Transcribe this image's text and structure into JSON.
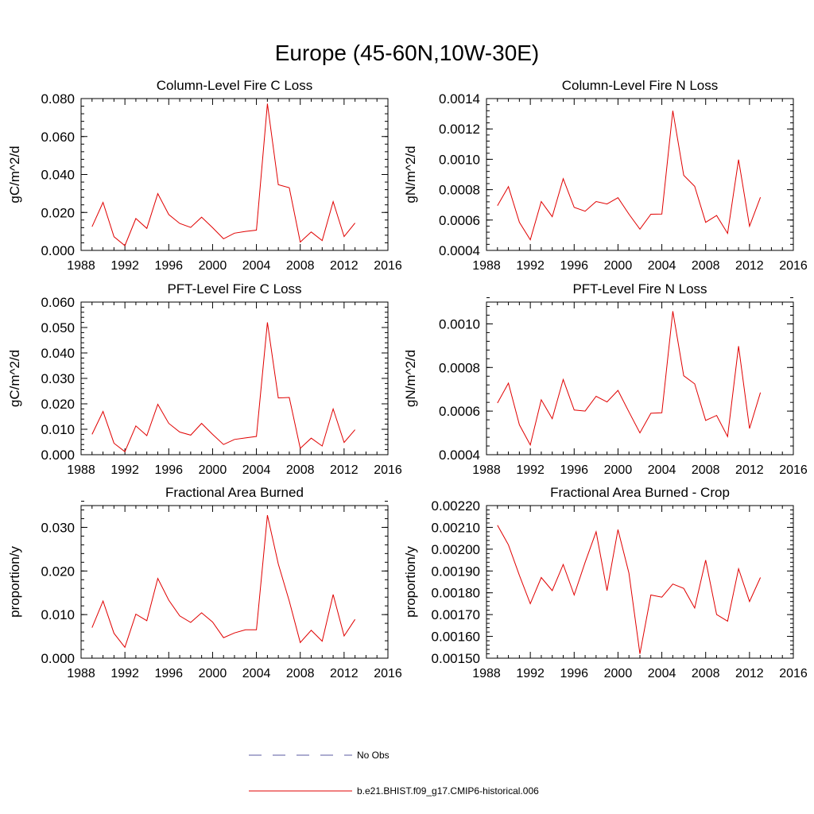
{
  "page_title": "Europe (45-60N,10W-30E)",
  "colors": {
    "model": "#e00000",
    "obs": "#5a5aa0",
    "axis": "#000000"
  },
  "legend": {
    "obs_label": "No Obs",
    "model_label": "b.e21.BHIST.f09_g17.CMIP6-historical.006"
  },
  "chart_data": [
    {
      "type": "line",
      "title": "Column-Level Fire C Loss",
      "ylabel": "gC/m^2/d",
      "xlim": [
        1988,
        2016
      ],
      "ylim": [
        0,
        0.08
      ],
      "xticks": [
        1988,
        1992,
        1996,
        2000,
        2004,
        2008,
        2012,
        2016
      ],
      "xtick_labels": [
        "1988",
        "1992",
        "1996",
        "2000",
        "2004",
        "2008",
        "2012",
        "2016"
      ],
      "yticks": [
        0,
        0.02,
        0.04,
        0.06,
        0.08
      ],
      "ytick_labels": [
        "0.000",
        "0.020",
        "0.040",
        "0.060",
        "0.080"
      ],
      "yminor": 0.004,
      "x": [
        1989,
        1990,
        1991,
        1992,
        1993,
        1994,
        1995,
        1996,
        1997,
        1998,
        1999,
        2000,
        2001,
        2002,
        2003,
        2004,
        2005,
        2006,
        2007,
        2008,
        2009,
        2010,
        2011,
        2012,
        2013
      ],
      "series": [
        {
          "values": [
            0.0125,
            0.0253,
            0.0072,
            0.0025,
            0.0168,
            0.0116,
            0.0299,
            0.0189,
            0.0142,
            0.0121,
            0.0175,
            0.012,
            0.0061,
            0.0091,
            0.01,
            0.0107,
            0.0773,
            0.0346,
            0.033,
            0.0044,
            0.0097,
            0.0052,
            0.0257,
            0.0073,
            0.0144
          ]
        }
      ]
    },
    {
      "type": "line",
      "title": "Column-Level Fire N Loss",
      "ylabel": "gN/m^2/d",
      "xlim": [
        1988,
        2016
      ],
      "ylim": [
        0.0004,
        0.0014
      ],
      "xticks": [
        1988,
        1992,
        1996,
        2000,
        2004,
        2008,
        2012,
        2016
      ],
      "xtick_labels": [
        "1988",
        "1992",
        "1996",
        "2000",
        "2004",
        "2008",
        "2012",
        "2016"
      ],
      "yticks": [
        0.0004,
        0.0006,
        0.0008,
        0.001,
        0.0012,
        0.0014
      ],
      "ytick_labels": [
        "0.0004",
        "0.0006",
        "0.0008",
        "0.0010",
        "0.0012",
        "0.0014"
      ],
      "yminor": 4e-05,
      "x": [
        1989,
        1990,
        1991,
        1992,
        1993,
        1994,
        1995,
        1996,
        1997,
        1998,
        1999,
        2000,
        2001,
        2002,
        2003,
        2004,
        2005,
        2006,
        2007,
        2008,
        2009,
        2010,
        2011,
        2012,
        2013
      ],
      "series": [
        {
          "values": [
            0.000695,
            0.00082,
            0.000585,
            0.00047,
            0.000722,
            0.000622,
            0.000872,
            0.000683,
            0.000658,
            0.000722,
            0.000706,
            0.000747,
            0.000639,
            0.00054,
            0.000638,
            0.00064,
            0.00132,
            0.000895,
            0.000822,
            0.000585,
            0.00063,
            0.000512,
            0.000998,
            0.000559,
            0.00075
          ]
        }
      ]
    },
    {
      "type": "line",
      "title": "PFT-Level Fire C Loss",
      "ylabel": "gC/m^2/d",
      "xlim": [
        1988,
        2016
      ],
      "ylim": [
        0,
        0.06
      ],
      "xticks": [
        1988,
        1992,
        1996,
        2000,
        2004,
        2008,
        2012,
        2016
      ],
      "xtick_labels": [
        "1988",
        "1992",
        "1996",
        "2000",
        "2004",
        "2008",
        "2012",
        "2016"
      ],
      "yticks": [
        0,
        0.01,
        0.02,
        0.03,
        0.04,
        0.05,
        0.06
      ],
      "ytick_labels": [
        "0.000",
        "0.010",
        "0.020",
        "0.030",
        "0.040",
        "0.050",
        "0.060"
      ],
      "yminor": 0.002,
      "x": [
        1989,
        1990,
        1991,
        1992,
        1993,
        1994,
        1995,
        1996,
        1997,
        1998,
        1999,
        2000,
        2001,
        2002,
        2003,
        2004,
        2005,
        2006,
        2007,
        2008,
        2009,
        2010,
        2011,
        2012,
        2013
      ],
      "series": [
        {
          "values": [
            0.008,
            0.017,
            0.0045,
            0.0012,
            0.0113,
            0.0075,
            0.0198,
            0.0123,
            0.0089,
            0.0077,
            0.0123,
            0.008,
            0.004,
            0.006,
            0.0066,
            0.0072,
            0.052,
            0.0223,
            0.0225,
            0.0025,
            0.0065,
            0.0034,
            0.018,
            0.0048,
            0.0098
          ]
        }
      ]
    },
    {
      "type": "line",
      "title": "PFT-Level Fire N Loss",
      "ylabel": "gN/m^2/d",
      "xlim": [
        1988,
        2016
      ],
      "ylim": [
        0.0004,
        0.0011
      ],
      "xticks": [
        1988,
        1992,
        1996,
        2000,
        2004,
        2008,
        2012,
        2016
      ],
      "xtick_labels": [
        "1988",
        "1992",
        "1996",
        "2000",
        "2004",
        "2008",
        "2012",
        "2016"
      ],
      "yticks": [
        0.0004,
        0.0006,
        0.0008,
        0.001
      ],
      "ytick_labels": [
        "0.0004",
        "0.0006",
        "0.0008",
        "0.0010"
      ],
      "yminor": 4e-05,
      "x": [
        1989,
        1990,
        1991,
        1992,
        1993,
        1994,
        1995,
        1996,
        1997,
        1998,
        1999,
        2000,
        2001,
        2002,
        2003,
        2004,
        2005,
        2006,
        2007,
        2008,
        2009,
        2010,
        2011,
        2012,
        2013
      ],
      "series": [
        {
          "values": [
            0.000637,
            0.000728,
            0.000537,
            0.000445,
            0.000652,
            0.000565,
            0.000745,
            0.000605,
            0.0006,
            0.000668,
            0.000642,
            0.000695,
            0.000596,
            0.0005,
            0.00059,
            0.000592,
            0.001058,
            0.000762,
            0.000725,
            0.000557,
            0.00058,
            0.000483,
            0.000898,
            0.00052,
            0.000685
          ]
        }
      ]
    },
    {
      "type": "line",
      "title": "Fractional Area Burned",
      "ylabel": "proportion/y",
      "xlim": [
        1988,
        2016
      ],
      "ylim": [
        0,
        0.035
      ],
      "xticks": [
        1988,
        1992,
        1996,
        2000,
        2004,
        2008,
        2012,
        2016
      ],
      "xtick_labels": [
        "1988",
        "1992",
        "1996",
        "2000",
        "2004",
        "2008",
        "2012",
        "2016"
      ],
      "yticks": [
        0,
        0.01,
        0.02,
        0.03
      ],
      "ytick_labels": [
        "0.000",
        "0.010",
        "0.020",
        "0.030"
      ],
      "yminor": 0.002,
      "x": [
        1989,
        1990,
        1991,
        1992,
        1993,
        1994,
        1995,
        1996,
        1997,
        1998,
        1999,
        2000,
        2001,
        2002,
        2003,
        2004,
        2005,
        2006,
        2007,
        2008,
        2009,
        2010,
        2011,
        2012,
        2013
      ],
      "series": [
        {
          "values": [
            0.007,
            0.0131,
            0.0057,
            0.0025,
            0.0101,
            0.0086,
            0.0183,
            0.0133,
            0.0097,
            0.0082,
            0.0104,
            0.0083,
            0.0047,
            0.0058,
            0.0065,
            0.0065,
            0.0328,
            0.0216,
            0.0131,
            0.0036,
            0.0064,
            0.0039,
            0.0146,
            0.0051,
            0.0089
          ]
        }
      ]
    },
    {
      "type": "line",
      "title": "Fractional Area Burned - Crop",
      "ylabel": "proportion/y",
      "xlim": [
        1988,
        2016
      ],
      "ylim": [
        0.0015,
        0.0022
      ],
      "xticks": [
        1988,
        1992,
        1996,
        2000,
        2004,
        2008,
        2012,
        2016
      ],
      "xtick_labels": [
        "1988",
        "1992",
        "1996",
        "2000",
        "2004",
        "2008",
        "2012",
        "2016"
      ],
      "yticks": [
        0.0015,
        0.0016,
        0.0017,
        0.0018,
        0.0019,
        0.002,
        0.0021,
        0.0022
      ],
      "ytick_labels": [
        "0.00150",
        "0.00160",
        "0.00170",
        "0.00180",
        "0.00190",
        "0.00200",
        "0.00210",
        "0.00220"
      ],
      "yminor": 2e-05,
      "x": [
        1989,
        1990,
        1991,
        1992,
        1993,
        1994,
        1995,
        1996,
        1997,
        1998,
        1999,
        2000,
        2001,
        2002,
        2003,
        2004,
        2005,
        2006,
        2007,
        2008,
        2009,
        2010,
        2011,
        2012,
        2013
      ],
      "series": [
        {
          "values": [
            0.00211,
            0.00202,
            0.00188,
            0.00175,
            0.00187,
            0.00181,
            0.00193,
            0.00179,
            0.00194,
            0.00208,
            0.00181,
            0.00209,
            0.00189,
            0.00152,
            0.00179,
            0.00178,
            0.00184,
            0.00182,
            0.00173,
            0.00195,
            0.0017,
            0.00167,
            0.00191,
            0.00176,
            0.00187
          ]
        }
      ]
    }
  ]
}
